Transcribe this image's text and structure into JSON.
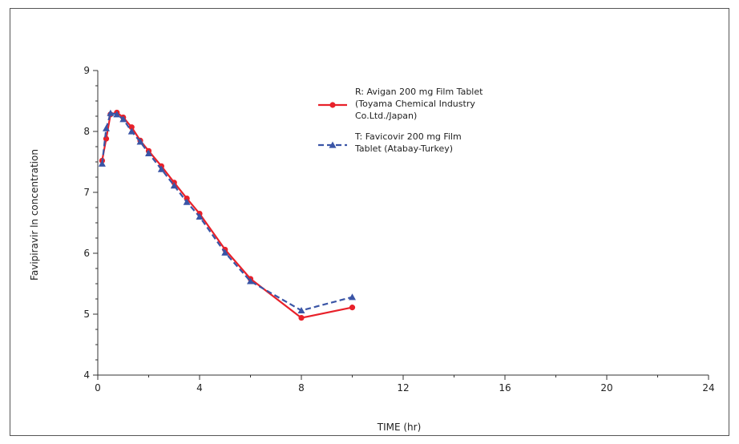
{
  "chart_data": {
    "type": "line",
    "title": "",
    "xlabel": "TIME (hr)",
    "ylabel": "Favipiravir ln concentration",
    "xlim": [
      0,
      24
    ],
    "ylim": [
      4,
      9
    ],
    "xticks": [
      0,
      4,
      8,
      12,
      16,
      20,
      24
    ],
    "yticks": [
      4,
      5,
      6,
      7,
      8,
      9
    ],
    "legend_position": "top-center",
    "grid": false,
    "series": [
      {
        "name": "R: Avigan 200 mg Film Tablet (Toyama Chemical Industry Co.Ltd./Japan)",
        "legend_lines": [
          "R: Avigan 200 mg Film Tablet",
          "(Toyama Chemical Industry",
          "Co.Ltd./Japan)"
        ],
        "color": "#e8212a",
        "marker": "circle",
        "dash": "solid",
        "x": [
          0.17,
          0.33,
          0.5,
          0.75,
          1,
          1.33,
          1.67,
          2,
          2.5,
          3,
          3.5,
          4,
          5,
          6,
          8,
          10
        ],
        "values": [
          7.52,
          7.88,
          8.28,
          8.31,
          8.23,
          8.07,
          7.85,
          7.68,
          7.43,
          7.16,
          6.9,
          6.65,
          6.06,
          5.58,
          4.94,
          5.11
        ]
      },
      {
        "name": "T: Favicovir 200 mg Film Tablet (Atabay-Turkey)",
        "legend_lines": [
          "T: Favicovir 200 mg Film",
          "Tablet (Atabay-Turkey)"
        ],
        "color": "#3a55a6",
        "marker": "triangle",
        "dash": "dashed",
        "x": [
          0.17,
          0.33,
          0.5,
          0.75,
          1,
          1.33,
          1.67,
          2,
          2.5,
          3,
          3.5,
          4,
          5,
          6,
          8,
          10
        ],
        "values": [
          7.47,
          8.05,
          8.3,
          8.28,
          8.2,
          8.0,
          7.83,
          7.64,
          7.38,
          7.11,
          6.84,
          6.6,
          6.01,
          5.54,
          5.06,
          5.28
        ]
      }
    ]
  }
}
